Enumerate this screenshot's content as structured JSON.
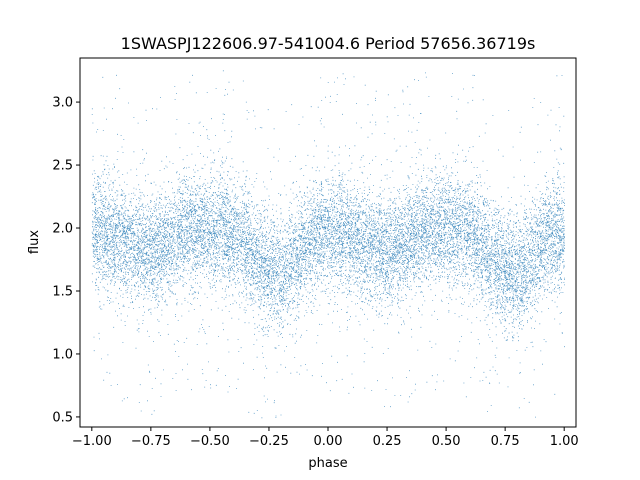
{
  "chart_data": {
    "type": "scatter",
    "title": "1SWASPJ122606.97-541004.6 Period 57656.36719s",
    "xlabel": "phase",
    "ylabel": "flux",
    "xlim": [
      -1.05,
      1.05
    ],
    "ylim": [
      0.42,
      3.35
    ],
    "xticks": [
      -1.0,
      -0.75,
      -0.5,
      -0.25,
      0.0,
      0.25,
      0.5,
      0.75,
      1.0
    ],
    "xtick_labels": [
      "−1.00",
      "−0.75",
      "−0.50",
      "−0.25",
      "0.00",
      "0.25",
      "0.50",
      "0.75",
      "1.00"
    ],
    "yticks": [
      0.5,
      1.0,
      1.5,
      2.0,
      2.5,
      3.0
    ],
    "ytick_labels": [
      "0.5",
      "1.0",
      "1.5",
      "2.0",
      "2.5",
      "3.0"
    ],
    "grid": false,
    "marker_color": "#1f77b4",
    "light_curve": {
      "phase": [
        -1.0,
        -0.95,
        -0.9,
        -0.85,
        -0.8,
        -0.75,
        -0.7,
        -0.65,
        -0.6,
        -0.55,
        -0.5,
        -0.45,
        -0.4,
        -0.35,
        -0.3,
        -0.25,
        -0.2,
        -0.15,
        -0.1,
        -0.05,
        0.0,
        0.05,
        0.1,
        0.15,
        0.2,
        0.25,
        0.3,
        0.35,
        0.4,
        0.45,
        0.5,
        0.55,
        0.6,
        0.65,
        0.7,
        0.75,
        0.8,
        0.85,
        0.9,
        0.95,
        1.0
      ],
      "flux": [
        1.95,
        1.97,
        1.93,
        1.88,
        1.83,
        1.8,
        1.85,
        1.93,
        1.98,
        2.0,
        1.99,
        1.98,
        1.95,
        1.87,
        1.74,
        1.65,
        1.62,
        1.72,
        1.85,
        1.94,
        1.97,
        1.97,
        1.93,
        1.88,
        1.83,
        1.8,
        1.85,
        1.93,
        1.98,
        2.0,
        1.99,
        1.98,
        1.95,
        1.87,
        1.74,
        1.65,
        1.62,
        1.72,
        1.85,
        1.94,
        1.95
      ]
    },
    "scatter_sigma": 0.22,
    "n_points": 16000
  }
}
